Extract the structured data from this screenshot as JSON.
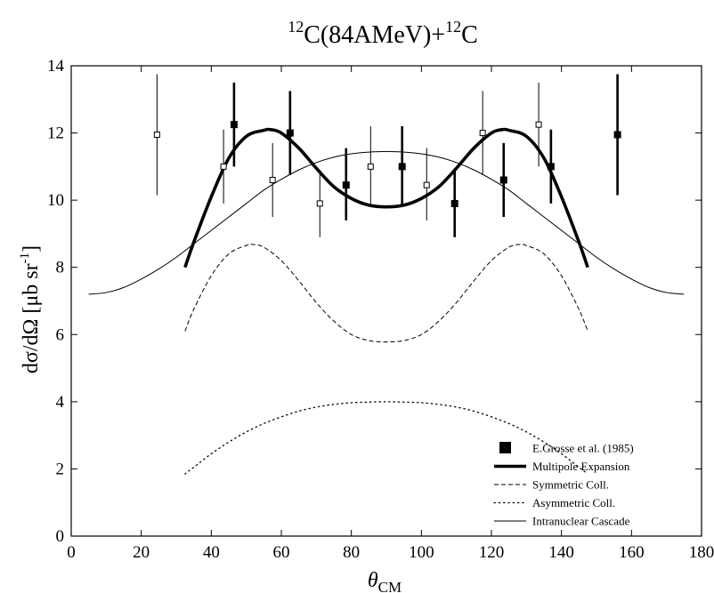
{
  "chart_data": {
    "type": "line",
    "title": {
      "mass_a": "12",
      "nucleus_a": "C(84AMeV)+",
      "mass_b": "12",
      "nucleus_b": "C"
    },
    "xlabel": {
      "symbol": "θ",
      "subscript": "CM"
    },
    "ylabel": {
      "main": "dσ/dΩ  [μb sr",
      "exponent": "-1",
      "close": "]"
    },
    "xlim": [
      0,
      180
    ],
    "ylim": [
      0,
      14
    ],
    "x_ticks": [
      0,
      20,
      40,
      60,
      80,
      100,
      120,
      140,
      160,
      180
    ],
    "y_ticks": [
      0,
      2,
      4,
      6,
      8,
      10,
      12,
      14
    ],
    "grid": false,
    "legend_position": "bottom-right",
    "legend": [
      {
        "key": "data",
        "label": "E.Grosse et al. (1985)"
      },
      {
        "key": "multipole",
        "label": "Multipole Expansion"
      },
      {
        "key": "symmetric",
        "label": "Symmetric Coll."
      },
      {
        "key": "asymmetric",
        "label": "Asymmetric Coll."
      },
      {
        "key": "cascade",
        "label": "Intranuclear Cascade"
      }
    ],
    "data_points": {
      "name": "E.Grosse et al. (1985)",
      "filled": [
        {
          "x": 46.5,
          "y": 12.25,
          "lo": 11.0,
          "hi": 13.5
        },
        {
          "x": 62.5,
          "y": 12.0,
          "lo": 10.75,
          "hi": 13.25
        },
        {
          "x": 78.5,
          "y": 10.45,
          "lo": 9.4,
          "hi": 11.55
        },
        {
          "x": 94.5,
          "y": 11.0,
          "lo": 9.85,
          "hi": 12.2
        },
        {
          "x": 109.5,
          "y": 9.9,
          "lo": 8.9,
          "hi": 10.9
        },
        {
          "x": 123.5,
          "y": 10.6,
          "lo": 9.5,
          "hi": 11.7
        },
        {
          "x": 137.0,
          "y": 11.0,
          "lo": 9.9,
          "hi": 12.1
        },
        {
          "x": 156.0,
          "y": 11.95,
          "lo": 10.15,
          "hi": 13.75
        }
      ],
      "open": [
        {
          "x": 24.5,
          "y": 11.95,
          "lo": 10.15,
          "hi": 13.75
        },
        {
          "x": 43.5,
          "y": 11.0,
          "lo": 9.9,
          "hi": 12.1
        },
        {
          "x": 57.5,
          "y": 10.6,
          "lo": 9.5,
          "hi": 11.7
        },
        {
          "x": 71.0,
          "y": 9.9,
          "lo": 8.9,
          "hi": 10.9
        },
        {
          "x": 85.5,
          "y": 11.0,
          "lo": 9.85,
          "hi": 12.2
        },
        {
          "x": 101.5,
          "y": 10.45,
          "lo": 9.4,
          "hi": 11.55
        },
        {
          "x": 117.5,
          "y": 12.0,
          "lo": 10.75,
          "hi": 13.25
        },
        {
          "x": 133.5,
          "y": 12.25,
          "lo": 11.0,
          "hi": 13.5
        }
      ]
    },
    "series": [
      {
        "key": "multipole",
        "name": "Multipole Expansion",
        "style": "thick-solid",
        "x": [
          32.5,
          35,
          40,
          45,
          50,
          55,
          57,
          60,
          65,
          70,
          75,
          80,
          85,
          90,
          95,
          100,
          105,
          110,
          115,
          120,
          123,
          125,
          130,
          135,
          140,
          145,
          147.5
        ],
        "y": [
          8.0,
          8.75,
          10.1,
          11.25,
          11.9,
          12.08,
          12.1,
          12.0,
          11.55,
          10.95,
          10.4,
          10.05,
          9.85,
          9.8,
          9.85,
          10.05,
          10.4,
          10.95,
          11.55,
          12.0,
          12.1,
          12.08,
          11.9,
          11.25,
          10.1,
          8.75,
          8.0
        ]
      },
      {
        "key": "symmetric",
        "name": "Symmetric Coll.",
        "style": "dashed",
        "x": [
          32.5,
          35,
          40,
          45,
          50,
          52,
          55,
          60,
          65,
          70,
          75,
          80,
          85,
          90,
          95,
          100,
          105,
          110,
          115,
          120,
          125,
          128,
          130,
          135,
          140,
          145,
          147.5
        ],
        "y": [
          6.1,
          6.75,
          7.75,
          8.4,
          8.65,
          8.68,
          8.6,
          8.2,
          7.6,
          6.95,
          6.4,
          6.0,
          5.82,
          5.78,
          5.82,
          6.0,
          6.4,
          6.95,
          7.6,
          8.2,
          8.6,
          8.68,
          8.65,
          8.4,
          7.75,
          6.75,
          6.1
        ]
      },
      {
        "key": "asymmetric",
        "name": "Asymmetric Coll.",
        "style": "dotted",
        "x": [
          32.5,
          35,
          40,
          45,
          50,
          55,
          60,
          65,
          70,
          75,
          80,
          85,
          90,
          95,
          100,
          105,
          110,
          115,
          120,
          125,
          130,
          135,
          140,
          145,
          147.5
        ],
        "y": [
          1.85,
          2.05,
          2.45,
          2.8,
          3.1,
          3.35,
          3.55,
          3.72,
          3.84,
          3.92,
          3.97,
          3.99,
          4.0,
          3.99,
          3.97,
          3.92,
          3.84,
          3.72,
          3.55,
          3.35,
          3.1,
          2.8,
          2.45,
          2.05,
          1.85
        ]
      },
      {
        "key": "cascade",
        "name": "Intranuclear Cascade",
        "style": "thin-solid",
        "x": [
          5,
          10,
          15,
          20,
          25,
          30,
          35,
          40,
          45,
          50,
          55,
          60,
          65,
          70,
          75,
          80,
          85,
          90,
          95,
          100,
          105,
          110,
          115,
          120,
          125,
          130,
          135,
          140,
          145,
          150,
          155,
          160,
          165,
          170,
          175
        ],
        "y": [
          7.2,
          7.25,
          7.4,
          7.65,
          7.95,
          8.3,
          8.7,
          9.1,
          9.5,
          9.9,
          10.3,
          10.62,
          10.9,
          11.12,
          11.28,
          11.38,
          11.43,
          11.45,
          11.43,
          11.38,
          11.28,
          11.12,
          10.9,
          10.62,
          10.3,
          9.9,
          9.5,
          9.1,
          8.7,
          8.3,
          7.95,
          7.65,
          7.4,
          7.25,
          7.2
        ]
      }
    ]
  }
}
